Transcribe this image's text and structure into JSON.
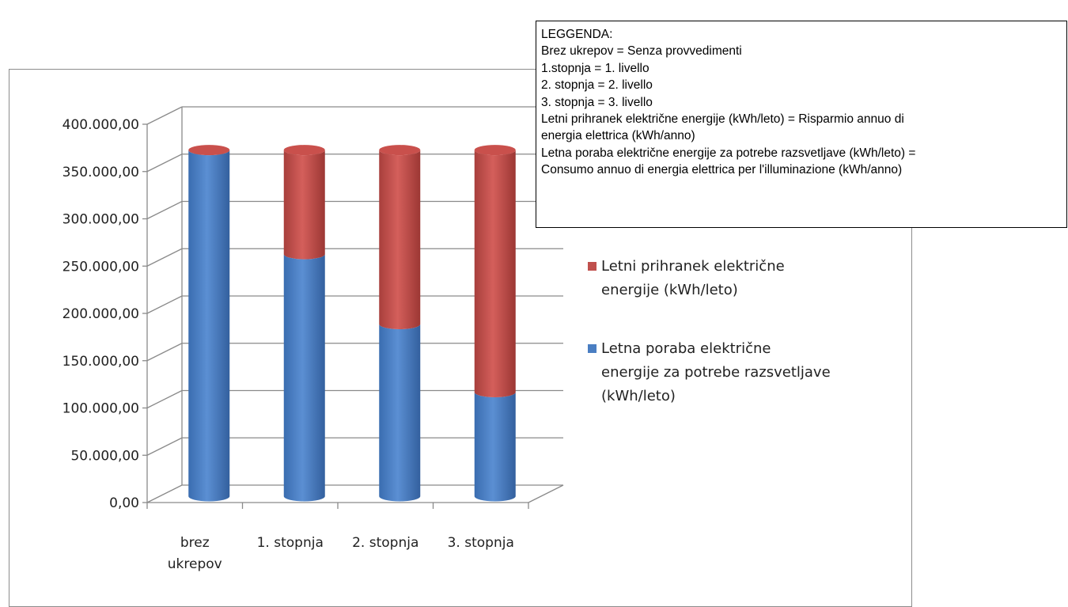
{
  "chart_data": {
    "type": "bar",
    "stacked": true,
    "style": "3d-cylinder",
    "categories": [
      "brez ukrepov",
      "1. stopnja",
      "2. stopnja",
      "3. stopnja"
    ],
    "series": [
      {
        "name": "Letna poraba električne energije za potrebe razsvetljave (kWh/leto)",
        "color": "#4a7ec2",
        "values": [
          366000,
          256000,
          182000,
          110000
        ]
      },
      {
        "name": "Letni prihranek električne energije (kWh/leto)",
        "color": "#c0504d",
        "values": [
          0,
          110000,
          184000,
          256000
        ]
      }
    ],
    "y_ticks": [
      "0,00",
      "50.000,00",
      "100.000,00",
      "150.000,00",
      "200.000,00",
      "250.000,00",
      "300.000,00",
      "350.000,00",
      "400.000,00"
    ],
    "ylim": [
      0,
      400000
    ],
    "grid": true,
    "legend_position": "right",
    "legend_entries": [
      {
        "series": 1,
        "lines": [
          "Letni prihranek električne",
          "energije (kWh/leto)"
        ]
      },
      {
        "series": 0,
        "lines": [
          "Letna poraba električne",
          "energije za potrebe razsvetljave",
          "(kWh/leto)"
        ]
      }
    ]
  },
  "note": {
    "lines": [
      "LEGGENDA:",
      "Brez ukrepov = Senza provvedimenti",
      "1.stopnja = 1. livello",
      "2. stopnja = 2. livello",
      "3. stopnja = 3. livello",
      "Letni prihranek električne energije (kWh/leto) = Risparmio annuo di",
      "energia elettrica (kWh/anno)",
      "Letna poraba električne energije za potrebe razsvetljave (kWh/leto) =",
      "Consumo annuo di energia elettrica per l'illuminazione (kWh/anno)"
    ]
  }
}
